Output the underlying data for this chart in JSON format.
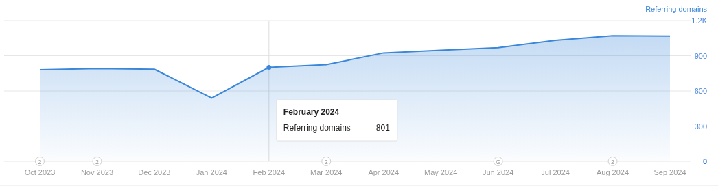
{
  "chart_data": {
    "type": "area",
    "categories": [
      "Oct 2023",
      "Nov 2023",
      "Dec 2023",
      "Jan 2024",
      "Feb 2024",
      "Mar 2024",
      "Apr 2024",
      "May 2024",
      "Jun 2024",
      "Jul 2024",
      "Aug 2024",
      "Sep 2024"
    ],
    "series": [
      {
        "name": "Referring domains",
        "color": "#3a87d9",
        "values": [
          781,
          791,
          785,
          539,
          801,
          824,
          924,
          946,
          969,
          1031,
          1070,
          1068
        ]
      }
    ],
    "ylim": [
      0,
      1200
    ],
    "yticks": [
      0,
      300,
      600,
      900,
      {
        "value": 1200,
        "label": "1.2K"
      }
    ],
    "grid": "y",
    "legend": "top right",
    "ref_lines": [
      {
        "axis": "x",
        "value": "Feb 2024",
        "color": "#dddddd"
      }
    ],
    "annotations": [
      "February 2024",
      "Referring domains",
      "801",
      {
        "text": "2",
        "x": "Oct 2023",
        "y": 0
      },
      {
        "text": "2",
        "x": "Nov 2023",
        "y": 0
      },
      {
        "text": "2",
        "x": "Mar 2024",
        "y": 0
      },
      {
        "text": "G",
        "x": "Jun 2024",
        "y": 0
      },
      {
        "text": "2",
        "x": "Aug 2024",
        "y": 0
      }
    ]
  }
}
